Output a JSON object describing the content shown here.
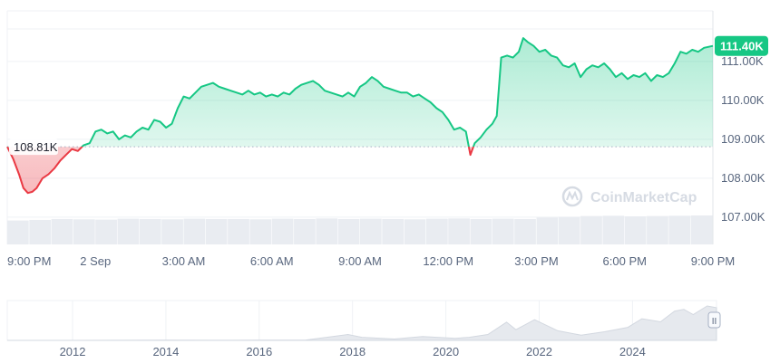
{
  "chart_data": [
    {
      "type": "area",
      "y_axis_position": "right",
      "ylim": [
        106300,
        112300
      ],
      "y_ticks": [
        {
          "value": 107000,
          "label": "107.00K"
        },
        {
          "value": 108000,
          "label": "108.00K"
        },
        {
          "value": 109000,
          "label": "109.00K"
        },
        {
          "value": 110000,
          "label": "110.00K"
        },
        {
          "value": 111000,
          "label": "111.00K"
        }
      ],
      "x_ticks": [
        {
          "hour": 0,
          "label": "9:00 PM"
        },
        {
          "hour": 3,
          "label": "2 Sep"
        },
        {
          "hour": 6,
          "label": "3:00 AM"
        },
        {
          "hour": 9,
          "label": "6:00 AM"
        },
        {
          "hour": 12,
          "label": "9:00 AM"
        },
        {
          "hour": 15,
          "label": "12:00 PM"
        },
        {
          "hour": 18,
          "label": "3:00 PM"
        },
        {
          "hour": 21,
          "label": "6:00 PM"
        },
        {
          "hour": 24,
          "label": "9:00 PM"
        }
      ],
      "baseline": {
        "value": 108810,
        "label": "108.81K"
      },
      "current": {
        "value": 111400,
        "label": "111.40K"
      },
      "colors": {
        "up": "#16c784",
        "down": "#ea3943",
        "axis_text": "#58667e",
        "grid": "#eff2f5"
      },
      "series": [
        {
          "points": [
            [
              0.0,
              108810
            ],
            [
              0.2,
              108500
            ],
            [
              0.4,
              108100
            ],
            [
              0.55,
              107750
            ],
            [
              0.7,
              107620
            ],
            [
              0.85,
              107650
            ],
            [
              1.0,
              107750
            ],
            [
              1.2,
              108000
            ],
            [
              1.4,
              108100
            ],
            [
              1.6,
              108250
            ],
            [
              1.8,
              108450
            ],
            [
              2.0,
              108600
            ],
            [
              2.2,
              108750
            ],
            [
              2.4,
              108700
            ],
            [
              2.6,
              108850
            ],
            [
              2.8,
              108900
            ],
            [
              3.0,
              109200
            ],
            [
              3.2,
              109250
            ],
            [
              3.4,
              109150
            ],
            [
              3.6,
              109200
            ],
            [
              3.8,
              109000
            ],
            [
              4.0,
              109100
            ],
            [
              4.2,
              109050
            ],
            [
              4.4,
              109200
            ],
            [
              4.6,
              109300
            ],
            [
              4.8,
              109250
            ],
            [
              5.0,
              109500
            ],
            [
              5.2,
              109450
            ],
            [
              5.4,
              109300
            ],
            [
              5.6,
              109400
            ],
            [
              5.8,
              109800
            ],
            [
              6.0,
              110100
            ],
            [
              6.2,
              110050
            ],
            [
              6.4,
              110200
            ],
            [
              6.6,
              110350
            ],
            [
              6.8,
              110400
            ],
            [
              7.0,
              110450
            ],
            [
              7.2,
              110350
            ],
            [
              7.4,
              110300
            ],
            [
              7.6,
              110250
            ],
            [
              7.8,
              110200
            ],
            [
              8.0,
              110150
            ],
            [
              8.2,
              110250
            ],
            [
              8.4,
              110150
            ],
            [
              8.6,
              110200
            ],
            [
              8.8,
              110100
            ],
            [
              9.0,
              110150
            ],
            [
              9.2,
              110100
            ],
            [
              9.4,
              110200
            ],
            [
              9.6,
              110150
            ],
            [
              9.8,
              110300
            ],
            [
              10.0,
              110400
            ],
            [
              10.2,
              110450
            ],
            [
              10.4,
              110500
            ],
            [
              10.6,
              110400
            ],
            [
              10.8,
              110250
            ],
            [
              11.0,
              110200
            ],
            [
              11.2,
              110150
            ],
            [
              11.4,
              110100
            ],
            [
              11.6,
              110200
            ],
            [
              11.8,
              110100
            ],
            [
              12.0,
              110350
            ],
            [
              12.2,
              110450
            ],
            [
              12.4,
              110600
            ],
            [
              12.6,
              110500
            ],
            [
              12.8,
              110350
            ],
            [
              13.0,
              110300
            ],
            [
              13.2,
              110250
            ],
            [
              13.4,
              110200
            ],
            [
              13.6,
              110200
            ],
            [
              13.8,
              110100
            ],
            [
              14.0,
              110150
            ],
            [
              14.2,
              110050
            ],
            [
              14.4,
              109950
            ],
            [
              14.6,
              109800
            ],
            [
              14.8,
              109700
            ],
            [
              15.0,
              109500
            ],
            [
              15.2,
              109250
            ],
            [
              15.4,
              109300
            ],
            [
              15.6,
              109200
            ],
            [
              15.75,
              108600
            ],
            [
              15.9,
              108900
            ],
            [
              16.1,
              109050
            ],
            [
              16.3,
              109250
            ],
            [
              16.5,
              109400
            ],
            [
              16.65,
              109600
            ],
            [
              16.8,
              111100
            ],
            [
              17.0,
              111150
            ],
            [
              17.2,
              111100
            ],
            [
              17.4,
              111250
            ],
            [
              17.55,
              111600
            ],
            [
              17.7,
              111500
            ],
            [
              17.9,
              111400
            ],
            [
              18.1,
              111250
            ],
            [
              18.3,
              111300
            ],
            [
              18.5,
              111150
            ],
            [
              18.7,
              111100
            ],
            [
              18.9,
              110900
            ],
            [
              19.1,
              110850
            ],
            [
              19.3,
              110950
            ],
            [
              19.5,
              110600
            ],
            [
              19.7,
              110800
            ],
            [
              19.9,
              110900
            ],
            [
              20.1,
              110850
            ],
            [
              20.3,
              110950
            ],
            [
              20.5,
              110800
            ],
            [
              20.7,
              110600
            ],
            [
              20.9,
              110700
            ],
            [
              21.1,
              110550
            ],
            [
              21.3,
              110650
            ],
            [
              21.5,
              110600
            ],
            [
              21.7,
              110700
            ],
            [
              21.9,
              110500
            ],
            [
              22.1,
              110650
            ],
            [
              22.3,
              110600
            ],
            [
              22.5,
              110700
            ],
            [
              22.7,
              110950
            ],
            [
              22.9,
              111250
            ],
            [
              23.1,
              111200
            ],
            [
              23.3,
              111300
            ],
            [
              23.5,
              111250
            ],
            [
              23.7,
              111350
            ],
            [
              24.0,
              111400
            ]
          ]
        }
      ],
      "volume": [
        0.8,
        0.82,
        0.85,
        0.84,
        0.83,
        0.86,
        0.85,
        0.84,
        0.86,
        0.85,
        0.85,
        0.84,
        0.86,
        0.85,
        0.87,
        0.85,
        0.86,
        0.85,
        0.84,
        0.86,
        0.87,
        0.85,
        0.86,
        0.85,
        0.9,
        0.92,
        0.95,
        0.96,
        0.94,
        0.95,
        0.96,
        0.97
      ]
    },
    {
      "type": "area",
      "role": "navigator",
      "x_ticks": [
        "2012",
        "2014",
        "2016",
        "2018",
        "2020",
        "2022",
        "2024"
      ],
      "history": [
        [
          2010.6,
          0.0
        ],
        [
          2012.0,
          0.0
        ],
        [
          2013.0,
          0.002
        ],
        [
          2014.0,
          0.004
        ],
        [
          2015.0,
          0.003
        ],
        [
          2016.0,
          0.004
        ],
        [
          2017.0,
          0.01
        ],
        [
          2017.9,
          0.17
        ],
        [
          2018.2,
          0.09
        ],
        [
          2018.9,
          0.04
        ],
        [
          2019.5,
          0.11
        ],
        [
          2020.2,
          0.06
        ],
        [
          2020.5,
          0.09
        ],
        [
          2020.9,
          0.17
        ],
        [
          2021.3,
          0.53
        ],
        [
          2021.5,
          0.31
        ],
        [
          2021.9,
          0.6
        ],
        [
          2022.4,
          0.28
        ],
        [
          2022.9,
          0.15
        ],
        [
          2023.4,
          0.25
        ],
        [
          2023.9,
          0.38
        ],
        [
          2024.2,
          0.63
        ],
        [
          2024.6,
          0.54
        ],
        [
          2024.9,
          0.85
        ],
        [
          2025.1,
          0.9
        ],
        [
          2025.3,
          0.75
        ],
        [
          2025.6,
          1.0
        ],
        [
          2025.8,
          0.95
        ]
      ]
    }
  ],
  "watermark": {
    "text": "CoinMarketCap"
  },
  "navigator": {
    "handle_glyph": "II"
  }
}
